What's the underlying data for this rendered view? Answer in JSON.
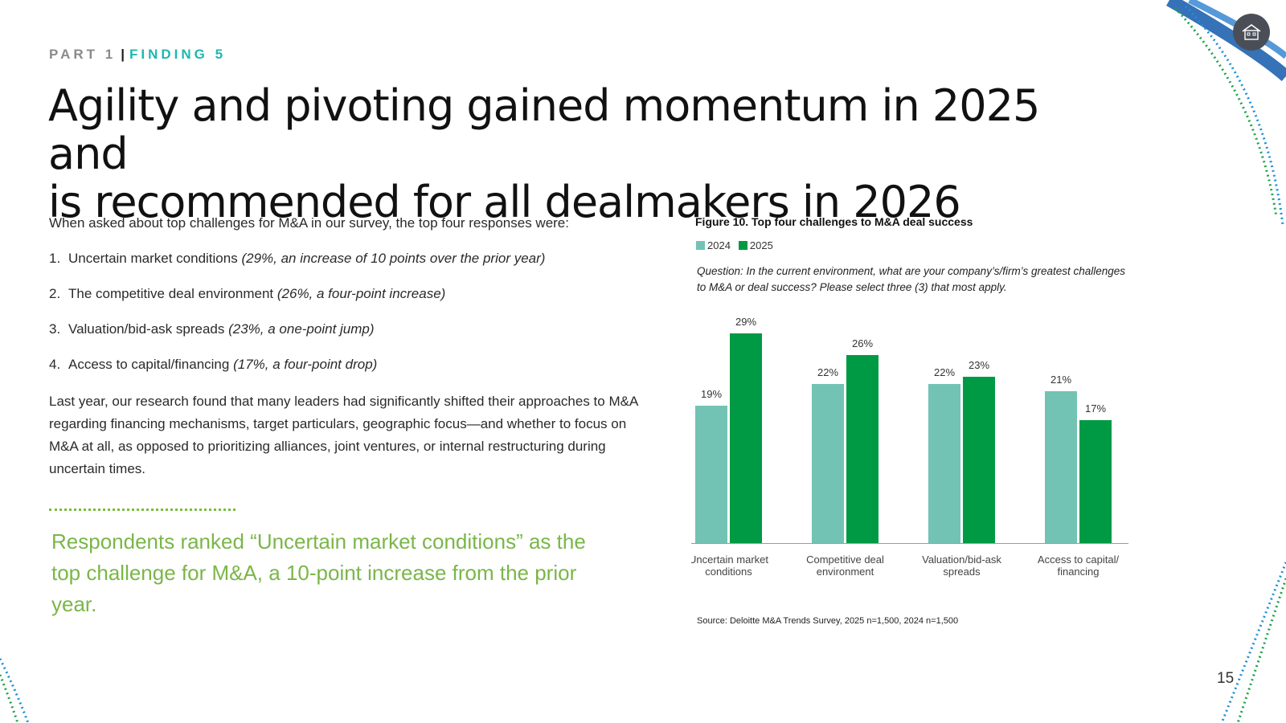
{
  "header": {
    "part": "PART 1",
    "separator": "|",
    "finding": "FINDING 5"
  },
  "title": {
    "line1": "Agility and pivoting gained momentum in 2025 and",
    "line2": "is recommended for all dealmakers in 2026"
  },
  "body": {
    "intro": "When asked about top challenges for M&A in our survey, the top four responses were:",
    "list": [
      {
        "num": "1.",
        "text": "Uncertain market conditions",
        "detail": "(29%, an increase of 10 points over the prior year)"
      },
      {
        "num": "2.",
        "text": "The competitive deal environment",
        "detail": "(26%, a four-point increase)"
      },
      {
        "num": "3.",
        "text": "Valuation/bid-ask spreads",
        "detail": "(23%, a one-point jump)"
      },
      {
        "num": "4.",
        "text": "Access to capital/financing",
        "detail": "(17%, a four-point drop)"
      }
    ],
    "paragraph": "Last year, our research found that many leaders had significantly shifted their approaches to M&A regarding financing mechanisms, target particulars, geographic focus—and whether to focus on M&A at all, as opposed to prioritizing alliances, joint ventures, or internal restructuring during uncertain times."
  },
  "callout": "Respondents ranked “Uncertain market conditions” as the top challenge for M&A, a 10-point increase from the prior year.",
  "figure": {
    "title": "Figure 10. Top four challenges to M&A deal success",
    "question": "Question: In the current environment, what are your company’s/firm’s greatest challenges to M&A or deal success? Please select three (3) that most apply.",
    "source": "Source: Deloitte M&A Trends Survey, 2025 n=1,500, 2024 n=1,500"
  },
  "chart_data": {
    "type": "bar",
    "title": "Figure 10. Top four challenges to M&A deal success",
    "categories": [
      [
        "Uncertain market",
        "conditions"
      ],
      [
        "Competitive deal",
        "environment"
      ],
      [
        "Valuation/bid-ask",
        "spreads"
      ],
      [
        "Access to capital/",
        "financing"
      ]
    ],
    "series": [
      {
        "name": "2024",
        "values": [
          19,
          22,
          22,
          21
        ],
        "labels": [
          "19%",
          "22%",
          "22%",
          "21%"
        ],
        "color": "#72c3b4"
      },
      {
        "name": "2025",
        "values": [
          29,
          26,
          23,
          17
        ],
        "labels": [
          "29%",
          "26%",
          "23%",
          "17%"
        ],
        "color": "#009a44"
      }
    ],
    "ylim": [
      0,
      30
    ],
    "grid": false,
    "legend": "top-left",
    "unit": "%"
  },
  "colors": {
    "accent_teal": "#1fb7b0",
    "callout_green": "#7ab648",
    "bar_2024": "#72c3b4",
    "bar_2025": "#009a44"
  },
  "nav": {
    "home_icon": "home-icon"
  },
  "page_number": "15"
}
